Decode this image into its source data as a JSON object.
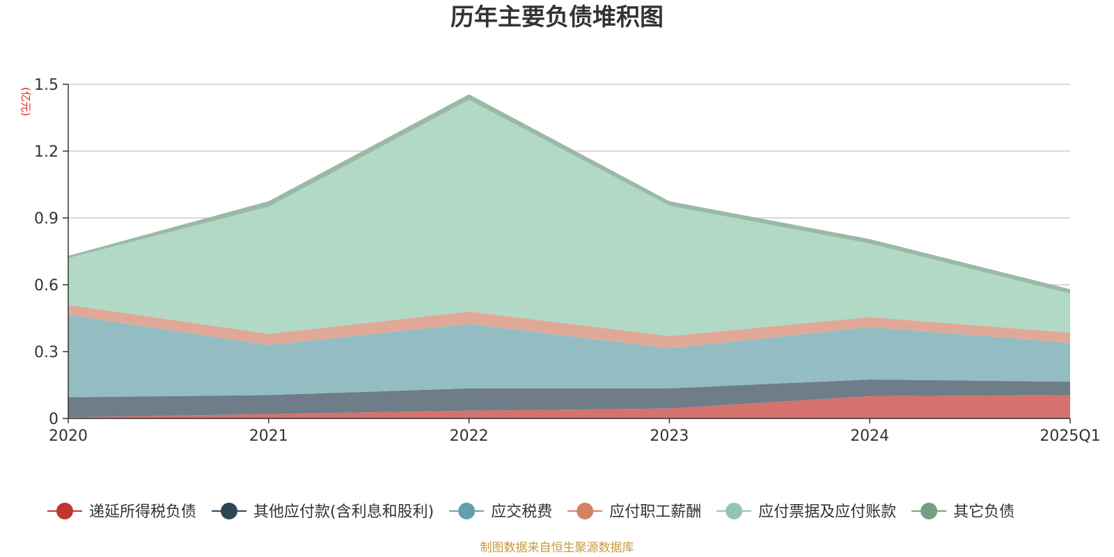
{
  "chart_data": {
    "type": "area",
    "stacked": true,
    "title": "历年主要负债堆积图",
    "unit": "(亿元)",
    "xlabel": "",
    "ylabel": "(亿元)",
    "categories": [
      "2020",
      "2021",
      "2022",
      "2023",
      "2024",
      "2025Q1"
    ],
    "ylim": [
      0,
      1.5
    ],
    "yticks": [
      0,
      0.3,
      0.6,
      0.9,
      1.2,
      1.5
    ],
    "ytick_labels": [
      "0",
      "0.3",
      "0.6",
      "0.9",
      "1.2",
      "1.5"
    ],
    "grid": true,
    "legend_position": "bottom",
    "series": [
      {
        "name": "递延所得税负债",
        "color": "#c23531",
        "fill": "#d5726d",
        "values": [
          0.005,
          0.02,
          0.035,
          0.045,
          0.1,
          0.105
        ]
      },
      {
        "name": "其他应付款(含利息和股利)",
        "color": "#2f4554",
        "fill": "#6e7d87",
        "values": [
          0.09,
          0.085,
          0.1,
          0.09,
          0.075,
          0.06
        ]
      },
      {
        "name": "应交税费",
        "color": "#61a0a8",
        "fill": "#93bdc2",
        "values": [
          0.37,
          0.225,
          0.29,
          0.18,
          0.235,
          0.175
        ]
      },
      {
        "name": "应付职工薪酬",
        "color": "#d48265",
        "fill": "#e0a997",
        "values": [
          0.045,
          0.05,
          0.055,
          0.055,
          0.045,
          0.045
        ]
      },
      {
        "name": "应付票据及应付账款",
        "color": "#91c7ae",
        "fill": "#b1d9c6",
        "values": [
          0.21,
          0.57,
          0.95,
          0.585,
          0.33,
          0.175
        ]
      },
      {
        "name": "其它负债",
        "color": "#749f83",
        "fill": "#9ab9a6",
        "values": [
          0.01,
          0.025,
          0.025,
          0.02,
          0.02,
          0.02
        ]
      }
    ],
    "source": "制图数据来自恒生聚源数据库"
  }
}
